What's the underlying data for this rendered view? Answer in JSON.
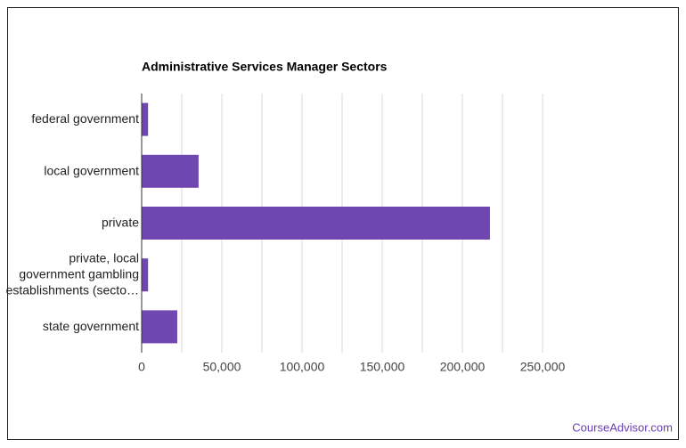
{
  "chart_data": {
    "type": "barh",
    "title": "Administrative Services Manager Sectors",
    "categories": [
      "federal government",
      "local government",
      "private",
      "private, local government gambling establishments (secto…",
      "state government"
    ],
    "values": [
      4000,
      35500,
      217200,
      4000,
      22200
    ],
    "color": "#7047b0",
    "xlim": [
      0,
      250000
    ],
    "xticks": [
      0,
      {
        "value": 50000,
        "label": "50,000"
      },
      {
        "value": 100000,
        "label": "100,000"
      },
      {
        "value": 150000,
        "label": "150,000"
      },
      {
        "value": 200000,
        "label": "200,000"
      },
      {
        "value": 250000,
        "label": "250,000"
      }
    ],
    "minor_gridlines": [
      25000,
      75000,
      125000,
      175000,
      225000
    ],
    "grid": true
  },
  "footer": "CourseAdvisor.com"
}
